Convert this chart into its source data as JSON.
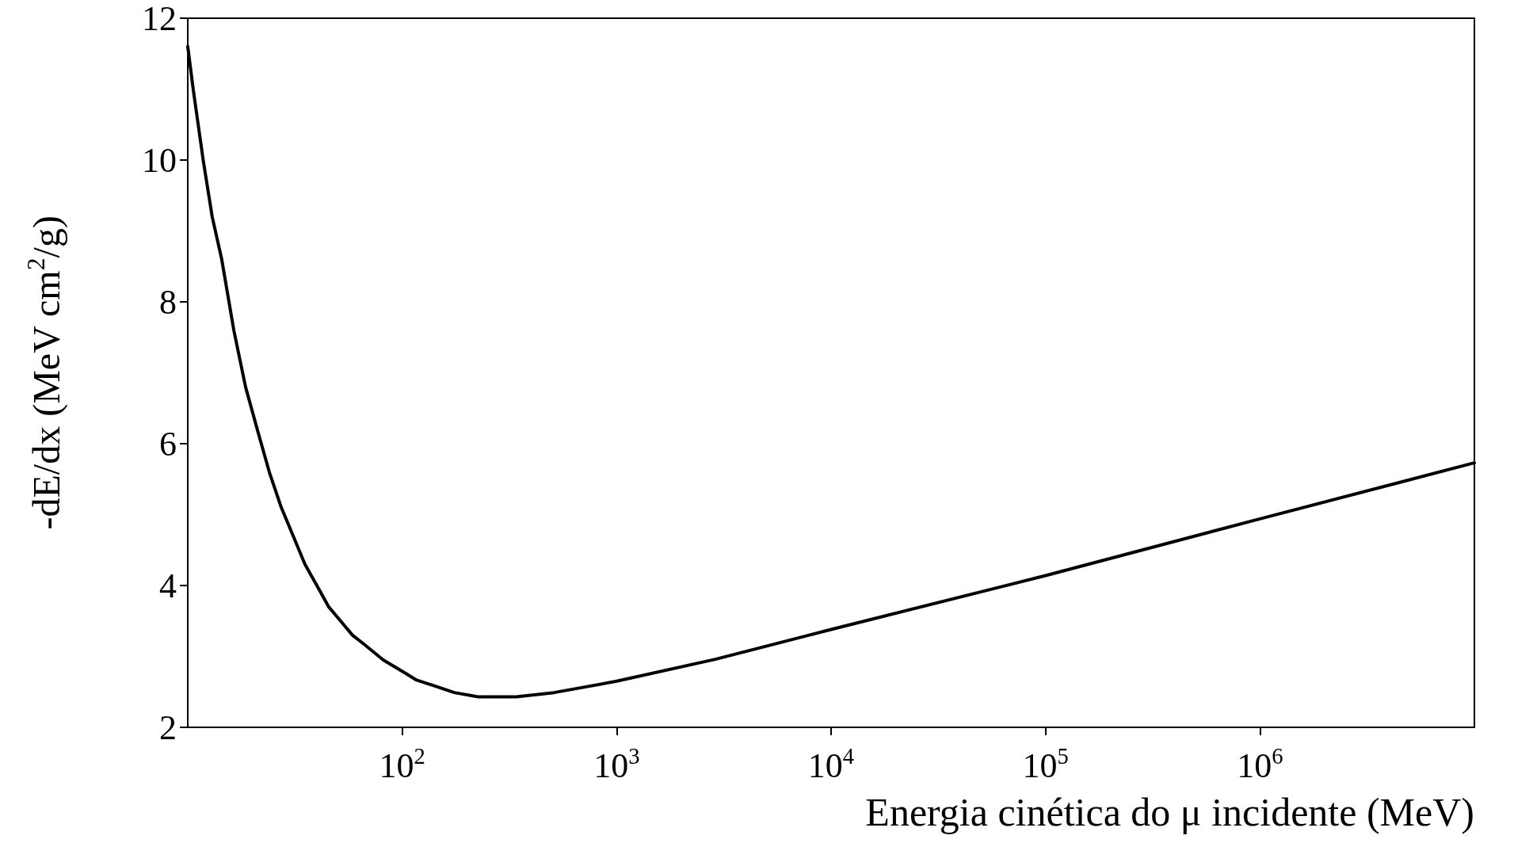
{
  "chart_data": {
    "type": "line",
    "xlabel": "Energia cinética do μ incidente (MeV)",
    "ylabel": "-dE/dx (MeV cm$^{2}$/g)",
    "log": "x",
    "grid": false,
    "marker": "none",
    "line_style": "solid",
    "xlim": [
      10,
      10000000
    ],
    "ylim": [
      2,
      12
    ],
    "xticks": [
      {
        "value": 100,
        "label": "10$^{2}$"
      },
      {
        "value": 1000,
        "label": "10$^{3}$"
      },
      {
        "value": 10000,
        "label": "10$^{4}$"
      },
      {
        "value": 100000,
        "label": "10$^{5}$"
      },
      {
        "value": 1000000,
        "label": "10$^{6}$"
      }
    ],
    "yticks": [
      2,
      4,
      6,
      8,
      10,
      12
    ],
    "series": [
      {
        "color": "#000000",
        "x": [
          10,
          10.6,
          11.8,
          13,
          14.4,
          16.4,
          18.6,
          21.1,
          24,
          27.3,
          31,
          35.2,
          40,
          45.4,
          51.6,
          58.6,
          66.5,
          81.6,
          100,
          116,
          143,
          175,
          226,
          340,
          511,
          1000,
          2884,
          10000,
          100000,
          1000000,
          10000000
        ],
        "values": [
          11.6,
          11.0,
          10.0,
          9.2,
          8.6,
          7.6,
          6.8,
          6.2,
          5.6,
          5.1,
          4.7,
          4.3,
          4.0,
          3.7,
          3.5,
          3.3,
          3.17,
          2.95,
          2.79,
          2.67,
          2.58,
          2.49,
          2.43,
          2.43,
          2.49,
          2.65,
          2.96,
          3.38,
          4.14,
          4.94,
          5.73
        ]
      }
    ]
  }
}
